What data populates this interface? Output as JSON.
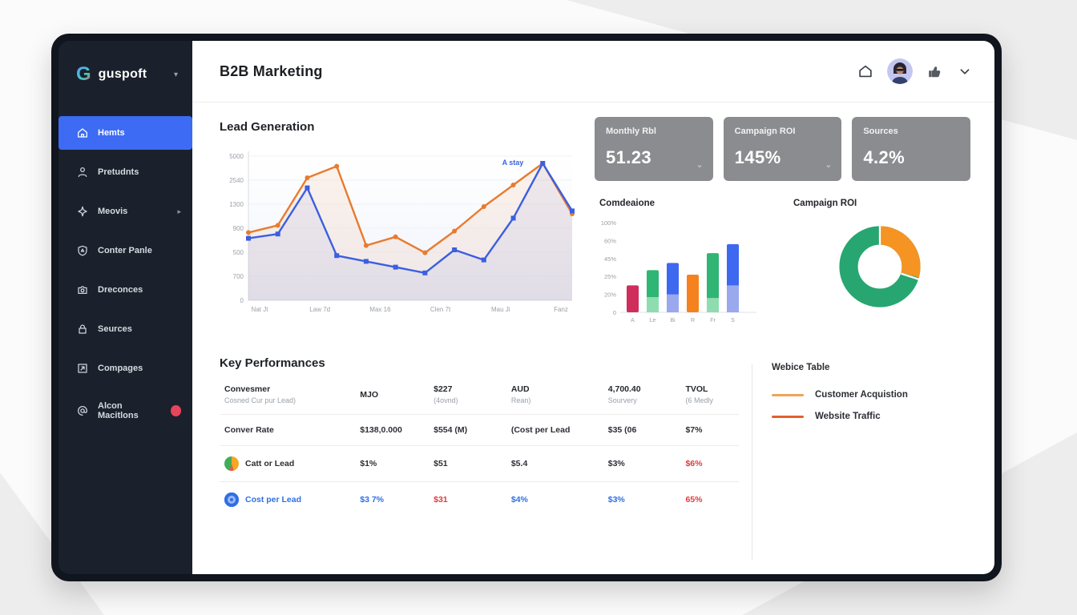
{
  "colors": {
    "accent_blue": "#3d6bf3",
    "line_blue": "#3b5fe0",
    "line_orange": "#e87b2e",
    "kpi_gray": "#8a8c8f",
    "badge_red": "#e8445a",
    "text_red": "#e03b3b",
    "text_blue": "#2f6fe4",
    "donut_green": "#27a671",
    "donut_orange": "#f59422"
  },
  "sidebar": {
    "logo": {
      "g": "G",
      "text": "guspoft",
      "caret": "▾"
    },
    "items": [
      {
        "label": "Hemts",
        "icon": "home-icon",
        "active": true
      },
      {
        "label": "Pretudnts",
        "icon": "user-icon"
      },
      {
        "label": "Meovis",
        "icon": "spark-icon",
        "chevron": true
      },
      {
        "label": "Conter Panle",
        "icon": "shield-icon"
      },
      {
        "label": "Dreconces",
        "icon": "camera-icon"
      },
      {
        "label": "Seurces",
        "icon": "lock-icon"
      },
      {
        "label": "Compages",
        "icon": "export-icon"
      },
      {
        "label": "Alcon Macitlons",
        "icon": "at-icon",
        "badge": true
      }
    ]
  },
  "header": {
    "title": "B2B Marketing",
    "icons": [
      "home-icon",
      "avatar",
      "thumb-icon",
      "chevron-down-icon"
    ]
  },
  "kpis": [
    {
      "label": "Monthly Rbl",
      "value": "51.23",
      "chevron": true
    },
    {
      "label": "Campaign ROI",
      "value": "145%",
      "chevron": true
    },
    {
      "label": "Sources",
      "value": "4.2%",
      "chevron": false
    }
  ],
  "lead_generation": {
    "title": "Lead Generation",
    "chart_data": {
      "type": "line",
      "y_ticks": [
        "5000",
        "2540",
        "1300",
        "900",
        "500",
        "700",
        "0"
      ],
      "x_ticks": [
        "Nat Jt",
        "Law 7d",
        "Max 16",
        "Clen 7t",
        "Mau Ji",
        "Fanz"
      ],
      "annotation": "A stay",
      "ylim": [
        0,
        100
      ],
      "series": [
        {
          "name": "Customer Acquisition",
          "color": "#e87b2e",
          "values": [
            47,
            52,
            85,
            93,
            38,
            44,
            33,
            48,
            65,
            80,
            95,
            60
          ]
        },
        {
          "name": "Website Traffic",
          "color": "#3b5fe0",
          "values": [
            43,
            46,
            78,
            31,
            27,
            23,
            19,
            35,
            28,
            57,
            95,
            62
          ]
        }
      ]
    }
  },
  "conversions_bar": {
    "title": "Comdeaione",
    "chart_data": {
      "type": "bar",
      "y_ticks": [
        "100%",
        "60%",
        "45%",
        "25%",
        "20%",
        "0"
      ],
      "categories": [
        "A",
        "Le",
        "Bi",
        "R",
        "Fr",
        "S"
      ],
      "values": [
        30,
        47,
        55,
        42,
        66,
        76
      ],
      "light_bottom": [
        0,
        17,
        20,
        0,
        16,
        30
      ],
      "bar_colors": [
        "#cf2d5c",
        "#2fb574",
        "#3f68f0",
        "#f5821e",
        "#2fb574",
        "#3f68f0"
      ],
      "light_colors": [
        "",
        "#8fdcb0",
        "#9aa8ee",
        "",
        "#8fdcb0",
        "#9aa8ee"
      ]
    }
  },
  "campaign_donut": {
    "title": "Campaign ROI",
    "chart_data": {
      "type": "pie",
      "slices": [
        {
          "name": "orange",
          "value": 30,
          "color": "#f59422"
        },
        {
          "name": "green",
          "value": 70,
          "color": "#27a671"
        }
      ]
    }
  },
  "key_performances": {
    "title": "Key Performances",
    "columns": [
      {
        "main": "Convesmer",
        "sub": "Cosned Cur pur Lead)"
      },
      {
        "main": "MJO",
        "sub": ""
      },
      {
        "main": "$227",
        "sub": "(4ovnd)"
      },
      {
        "main": "AUD",
        "sub": "Rean)"
      },
      {
        "main": "4,700.40",
        "sub": "Sourvery"
      },
      {
        "main": "TVOL",
        "sub": "(6 Medly"
      }
    ],
    "rows": [
      {
        "icon": "",
        "label": "Conver Rate",
        "label_color": "dark",
        "values": [
          "$138,0.000",
          "$554 (M)",
          "(Cost per Lead",
          "$35 (06",
          "$7%"
        ],
        "value_colors": [
          "dark",
          "dark",
          "dark",
          "dark",
          "dark"
        ]
      },
      {
        "icon": "pie-icon",
        "label": "Catt or Lead",
        "label_color": "dark",
        "values": [
          "$1%",
          "$51",
          "$5.4",
          "$3%",
          "$6%"
        ],
        "value_colors": [
          "dark",
          "dark",
          "dark",
          "dark",
          "red"
        ]
      },
      {
        "icon": "target-icon",
        "label": "Cost per Lead",
        "label_color": "blue",
        "values": [
          "$3 7%",
          "$31",
          "$4%",
          "$3%",
          "65%"
        ],
        "value_colors": [
          "blue",
          "red",
          "blue",
          "blue",
          "red"
        ]
      }
    ]
  },
  "website_panel": {
    "title": "Webice Table",
    "legend": [
      {
        "label": "Customer Acquistion",
        "color": "#f0a35c"
      },
      {
        "label": "Website Traffic",
        "color": "#e2602c"
      }
    ]
  }
}
